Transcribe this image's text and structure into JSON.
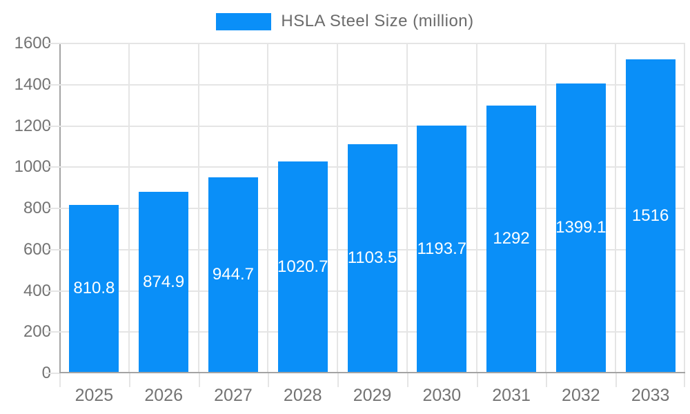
{
  "chart_data": {
    "type": "bar",
    "title": "",
    "legend": "HSLA Steel Size (million)",
    "legend_position": "top-center",
    "categories": [
      "2025",
      "2026",
      "2027",
      "2028",
      "2029",
      "2030",
      "2031",
      "2032",
      "2033"
    ],
    "values": [
      810.8,
      874.9,
      944.7,
      1020.7,
      1103.5,
      1193.7,
      1292,
      1399.1,
      1516
    ],
    "bar_labels": [
      "810.8",
      "874.9",
      "944.7",
      "1020.7",
      "1103.5",
      "1193.7",
      "1292",
      "1399.1",
      "1516"
    ],
    "xlabel": "",
    "ylabel": "",
    "ylim": [
      0,
      1600
    ],
    "yticks": [
      0,
      200,
      400,
      600,
      800,
      1000,
      1200,
      1400,
      1600
    ],
    "grid": true,
    "colors": {
      "bar": "#0a8ff8",
      "bar_label": "#ffffff",
      "axis_text": "#737373",
      "legend_text": "#6b6b6b",
      "gridline": "#e5e5e5",
      "axis_line": "#a3a3a3",
      "background": "#ffffff"
    }
  }
}
